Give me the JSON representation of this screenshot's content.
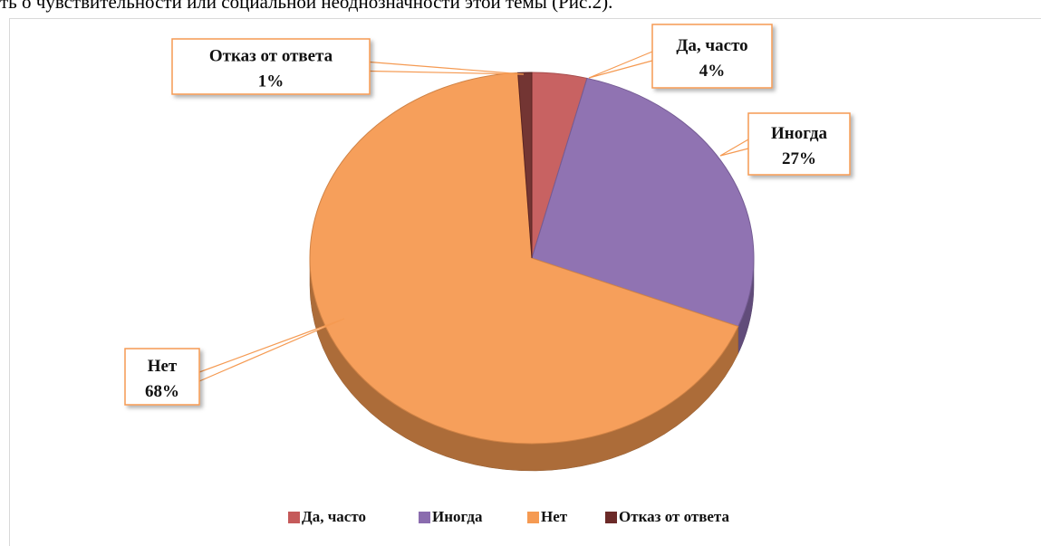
{
  "header_text": "ть о чувствительности или социальной неоднозначности этой темы (Рис.2).",
  "chart_data": {
    "type": "pie",
    "categories": [
      "Да, часто",
      "Иногда",
      "Нет",
      "Отказ от ответа"
    ],
    "values": [
      4,
      27,
      68,
      1
    ],
    "value_labels": [
      "4%",
      "27%",
      "68%",
      "1%"
    ],
    "colors": [
      "#c55a5a",
      "#8a6cae",
      "#f59a52",
      "#6b2a28"
    ],
    "legend": "bottom"
  }
}
